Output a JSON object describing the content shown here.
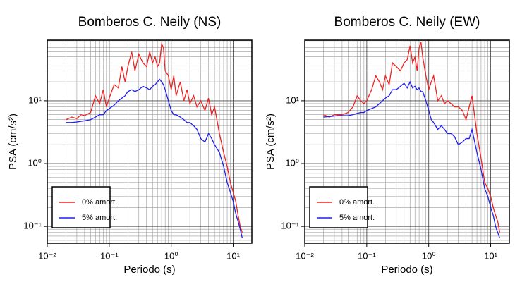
{
  "chart_data": [
    {
      "type": "line",
      "title": "Bomberos C. Neily (NS)",
      "x_label": "Periodo (s)",
      "y_label": "PSA (cm/s²)",
      "x_scale": "log",
      "y_scale": "log",
      "grid": true,
      "legend": "lower left",
      "xlim": [
        0.01,
        20
      ],
      "ylim": [
        0.054,
        92
      ],
      "xticks": [
        {
          "value": 0.01,
          "label": "10⁻²"
        },
        {
          "value": 0.1,
          "label": "10⁻¹"
        },
        {
          "value": 1,
          "label": "10⁰"
        },
        {
          "value": 10,
          "label": "10¹"
        }
      ],
      "yticks": [
        {
          "value": 0.1,
          "label": "10⁻¹"
        },
        {
          "value": 1,
          "label": "10⁰"
        },
        {
          "value": 10,
          "label": "10¹"
        }
      ],
      "x": [
        0.02,
        0.025,
        0.03,
        0.035,
        0.04,
        0.05,
        0.06,
        0.07,
        0.08,
        0.09,
        0.1,
        0.12,
        0.14,
        0.16,
        0.18,
        0.2,
        0.23,
        0.26,
        0.3,
        0.35,
        0.4,
        0.45,
        0.5,
        0.55,
        0.6,
        0.65,
        0.7,
        0.75,
        0.8,
        0.9,
        1.0,
        1.1,
        1.2,
        1.4,
        1.6,
        1.8,
        2.0,
        2.3,
        2.6,
        3.0,
        3.5,
        4.0,
        4.5,
        5.0,
        6.0,
        7.0,
        8.0,
        9.0,
        10,
        11,
        12,
        13,
        14
      ],
      "series": [
        {
          "name": "0% amort.",
          "color": "#ee2222",
          "values": [
            5,
            5.5,
            5.2,
            6,
            5.8,
            6.5,
            12,
            9,
            15,
            8,
            11,
            18,
            16,
            35,
            20,
            35,
            60,
            30,
            55,
            40,
            35,
            60,
            40,
            50,
            35,
            40,
            80,
            70,
            30,
            25,
            15,
            25,
            12,
            20,
            10,
            15,
            9,
            12,
            8,
            10,
            7,
            11,
            6,
            8,
            3,
            1.5,
            0.9,
            0.5,
            0.35,
            0.25,
            0.15,
            0.1,
            0.08
          ]
        },
        {
          "name": "5% amort.",
          "color": "#1f1fee",
          "values": [
            4.5,
            4.5,
            4.6,
            4.7,
            4.8,
            5,
            5.5,
            6,
            6,
            7,
            7.5,
            8.5,
            10,
            11,
            12,
            14,
            15,
            14,
            15,
            17,
            16,
            15,
            17,
            18,
            20,
            22,
            20,
            18,
            15,
            10,
            7,
            6,
            6,
            5.5,
            5,
            4.5,
            4.5,
            4,
            3.5,
            2.5,
            2.2,
            3,
            2.5,
            2,
            1.5,
            0.9,
            0.5,
            0.35,
            0.25,
            0.16,
            0.12,
            0.09,
            0.065
          ]
        }
      ]
    },
    {
      "type": "line",
      "title": "Bomberos C. Neily (EW)",
      "x_label": "Periodo (s)",
      "y_label": "PSA (cm/s²)",
      "x_scale": "log",
      "y_scale": "log",
      "grid": true,
      "legend": "lower left",
      "xlim": [
        0.01,
        20
      ],
      "ylim": [
        0.054,
        92
      ],
      "xticks": [
        {
          "value": 0.01,
          "label": "10⁻²"
        },
        {
          "value": 0.1,
          "label": "10⁻¹"
        },
        {
          "value": 1,
          "label": "10⁰"
        },
        {
          "value": 10,
          "label": "10¹"
        }
      ],
      "yticks": [
        {
          "value": 0.1,
          "label": "10⁻¹"
        },
        {
          "value": 1,
          "label": "10⁰"
        },
        {
          "value": 10,
          "label": "10¹"
        }
      ],
      "x": [
        0.02,
        0.025,
        0.03,
        0.035,
        0.04,
        0.05,
        0.06,
        0.07,
        0.08,
        0.09,
        0.1,
        0.12,
        0.14,
        0.16,
        0.18,
        0.2,
        0.23,
        0.26,
        0.3,
        0.35,
        0.4,
        0.45,
        0.5,
        0.55,
        0.6,
        0.65,
        0.7,
        0.75,
        0.8,
        0.9,
        1.0,
        1.1,
        1.2,
        1.4,
        1.6,
        1.8,
        2.0,
        2.3,
        2.6,
        3.0,
        3.5,
        4.0,
        4.5,
        5.0,
        6.0,
        7.0,
        8.0,
        9.0,
        10,
        11,
        12,
        13,
        14
      ],
      "series": [
        {
          "name": "0% amort.",
          "color": "#ee2222",
          "values": [
            6,
            5.5,
            6,
            6,
            6,
            6.5,
            8,
            12,
            10,
            9,
            10,
            15,
            25,
            20,
            15,
            25,
            18,
            40,
            35,
            30,
            40,
            45,
            75,
            40,
            50,
            30,
            70,
            85,
            50,
            25,
            15,
            20,
            25,
            10,
            12,
            9,
            10,
            9,
            8,
            8,
            7,
            5,
            8,
            12,
            3,
            1.2,
            0.5,
            0.4,
            0.3,
            0.2,
            0.15,
            0.12,
            0.08
          ]
        },
        {
          "name": "5% amort.",
          "color": "#1f1fee",
          "values": [
            5.5,
            5.6,
            5.7,
            5.8,
            5.8,
            5.8,
            6,
            6.3,
            6.5,
            6.5,
            7,
            7.5,
            8,
            9,
            10,
            11,
            12,
            15,
            15,
            17,
            19,
            16,
            20,
            16,
            17,
            15,
            16,
            14,
            14,
            10,
            7,
            5,
            4.5,
            3.5,
            4,
            3.5,
            3,
            3,
            2.7,
            2,
            2.2,
            2.5,
            2.5,
            3.5,
            1.5,
            0.8,
            0.4,
            0.3,
            0.2,
            0.15,
            0.1,
            0.08,
            0.065
          ]
        }
      ]
    }
  ]
}
